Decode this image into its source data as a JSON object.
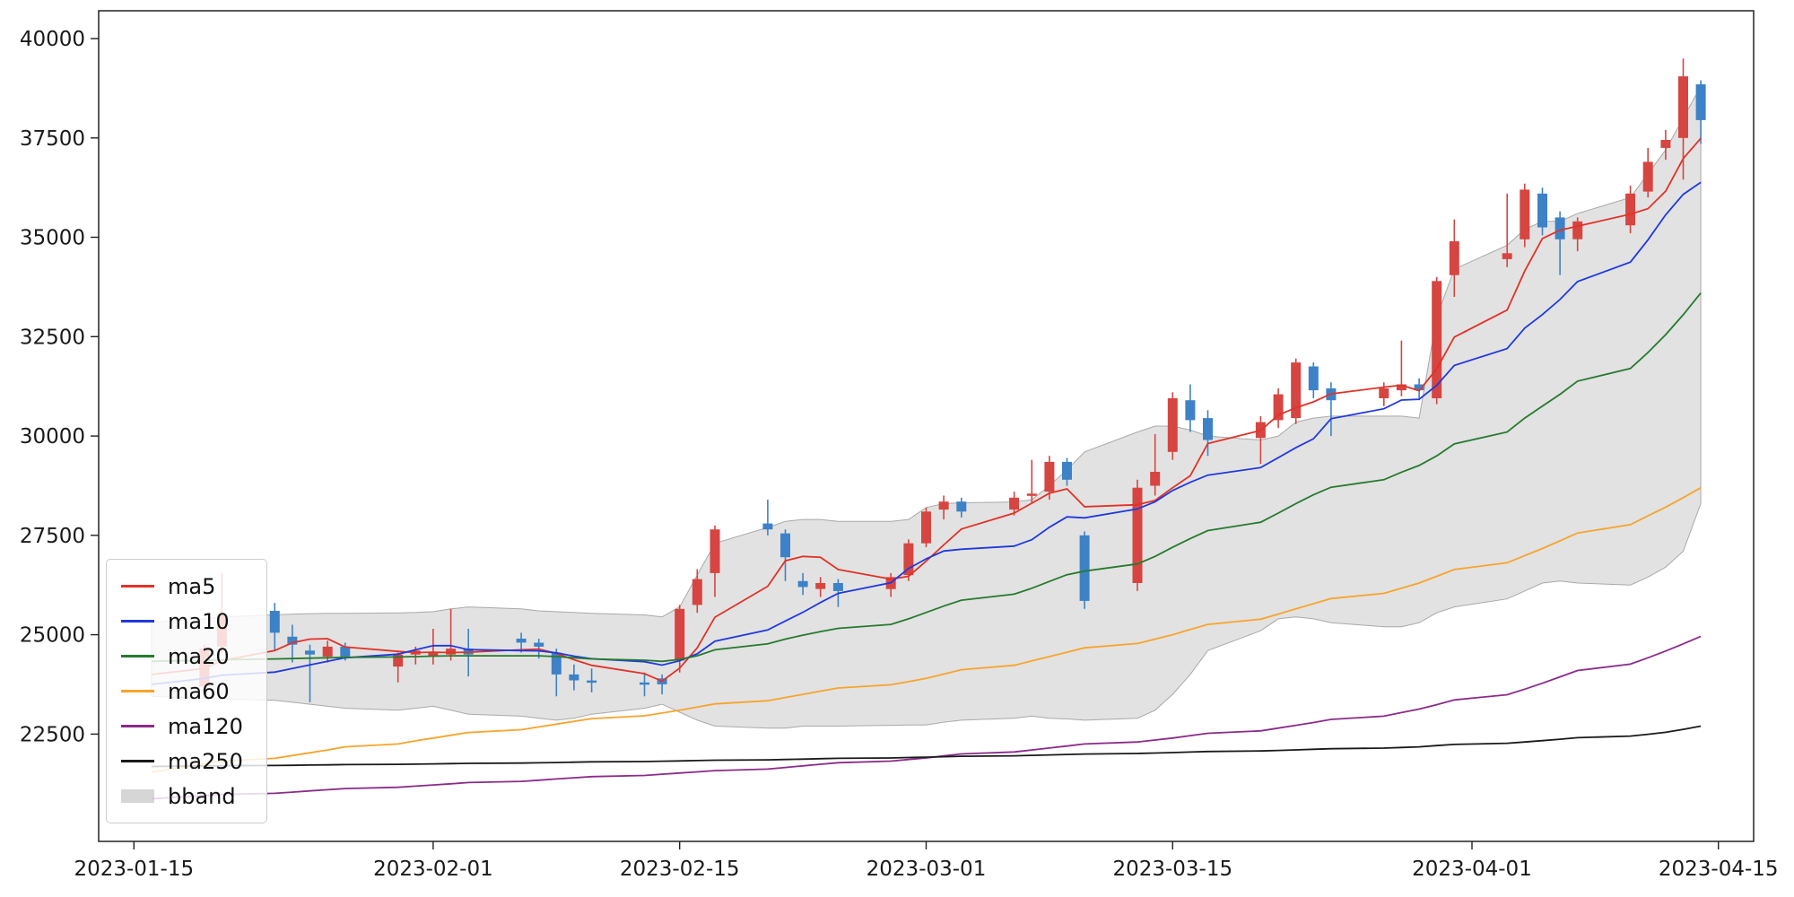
{
  "chart_data": {
    "type": "candlestick",
    "x_axis": {
      "range": [
        "2023-01-13",
        "2023-04-17"
      ],
      "ticks": [
        "2023-01-15",
        "2023-02-01",
        "2023-02-15",
        "2023-03-01",
        "2023-03-15",
        "2023-04-01",
        "2023-04-15"
      ]
    },
    "y_axis": {
      "range": [
        19800,
        40700
      ],
      "ticks": [
        22500,
        25000,
        27500,
        30000,
        32500,
        35000,
        37500,
        40000
      ]
    },
    "grid": false,
    "legend": {
      "position": "lower left",
      "entries": [
        {
          "label": "ma5",
          "color": "#e13228",
          "type": "line"
        },
        {
          "label": "ma10",
          "color": "#2139de",
          "type": "line"
        },
        {
          "label": "ma20",
          "color": "#267a2e",
          "type": "line"
        },
        {
          "label": "ma60",
          "color": "#f7a42b",
          "type": "line"
        },
        {
          "label": "ma120",
          "color": "#8a2b8a",
          "type": "line"
        },
        {
          "label": "ma250",
          "color": "#1a1a1a",
          "type": "line"
        },
        {
          "label": "bband",
          "color": "rgba(180,180,180,0.55)",
          "type": "band"
        }
      ]
    },
    "colors": {
      "up": "#d64541",
      "down": "#3d82c6",
      "band_fill": "rgba(190,190,190,0.45)",
      "band_edge": "rgba(140,140,140,0.7)"
    },
    "dates": [
      "2023-01-16",
      "2023-01-17",
      "2023-01-18",
      "2023-01-19",
      "2023-01-20",
      "2023-01-23",
      "2023-01-24",
      "2023-01-25",
      "2023-01-26",
      "2023-01-27",
      "2023-01-30",
      "2023-01-31",
      "2023-02-01",
      "2023-02-02",
      "2023-02-03",
      "2023-02-06",
      "2023-02-07",
      "2023-02-08",
      "2023-02-09",
      "2023-02-10",
      "2023-02-13",
      "2023-02-14",
      "2023-02-15",
      "2023-02-16",
      "2023-02-17",
      "2023-02-20",
      "2023-02-21",
      "2023-02-22",
      "2023-02-23",
      "2023-02-24",
      "2023-02-27",
      "2023-02-28",
      "2023-03-01",
      "2023-03-02",
      "2023-03-03",
      "2023-03-06",
      "2023-03-07",
      "2023-03-08",
      "2023-03-09",
      "2023-03-10",
      "2023-03-13",
      "2023-03-14",
      "2023-03-15",
      "2023-03-16",
      "2023-03-17",
      "2023-03-20",
      "2023-03-21",
      "2023-03-22",
      "2023-03-23",
      "2023-03-24",
      "2023-03-27",
      "2023-03-28",
      "2023-03-29",
      "2023-03-30",
      "2023-03-31",
      "2023-04-03",
      "2023-04-04",
      "2023-04-05",
      "2023-04-06",
      "2023-04-07",
      "2023-04-10",
      "2023-04-11",
      "2023-04-12",
      "2023-04-13",
      "2023-04-14"
    ],
    "candles": {
      "columns": [
        "date",
        "open",
        "high",
        "low",
        "close"
      ],
      "rows": [
        [
          "2023-01-19",
          23700,
          24750,
          23400,
          24650
        ],
        [
          "2023-01-20",
          24700,
          26550,
          24550,
          25500
        ],
        [
          "2023-01-23",
          25600,
          25800,
          24600,
          25050
        ],
        [
          "2023-01-24",
          24950,
          25250,
          24300,
          24750
        ],
        [
          "2023-01-25",
          24600,
          24750,
          23300,
          24500
        ],
        [
          "2023-01-26",
          24450,
          24850,
          24300,
          24700
        ],
        [
          "2023-01-27",
          24700,
          24800,
          24350,
          24450
        ],
        [
          "2023-01-30",
          24200,
          24550,
          23800,
          24500
        ],
        [
          "2023-01-31",
          24500,
          24700,
          24250,
          24600
        ],
        [
          "2023-02-01",
          24450,
          25150,
          24250,
          24550
        ],
        [
          "2023-02-02",
          24500,
          25650,
          24350,
          24650
        ],
        [
          "2023-02-03",
          24650,
          25150,
          23950,
          24500
        ],
        [
          "2023-02-06",
          24900,
          25050,
          24550,
          24800
        ],
        [
          "2023-02-07",
          24800,
          24900,
          24400,
          24700
        ],
        [
          "2023-02-08",
          24550,
          24650,
          23450,
          24000
        ],
        [
          "2023-02-09",
          24000,
          24250,
          23600,
          23850
        ],
        [
          "2023-02-10",
          23850,
          24150,
          23550,
          23800
        ],
        [
          "2023-02-13",
          23800,
          24050,
          23450,
          23750
        ],
        [
          "2023-02-14",
          23900,
          24000,
          23500,
          23750
        ],
        [
          "2023-02-15",
          24350,
          25750,
          24050,
          25650
        ],
        [
          "2023-02-16",
          25750,
          26650,
          25550,
          26400
        ],
        [
          "2023-02-17",
          26550,
          27750,
          25950,
          27650
        ],
        [
          "2023-02-20",
          27800,
          28400,
          27500,
          27650
        ],
        [
          "2023-02-21",
          27550,
          27650,
          26350,
          26950
        ],
        [
          "2023-02-22",
          26350,
          26550,
          26000,
          26200
        ],
        [
          "2023-02-23",
          26150,
          26450,
          25950,
          26300
        ],
        [
          "2023-02-24",
          26300,
          26400,
          25700,
          26100
        ],
        [
          "2023-02-27",
          26150,
          26550,
          25950,
          26450
        ],
        [
          "2023-02-28",
          26500,
          27400,
          26350,
          27300
        ],
        [
          "2023-03-01",
          27300,
          28200,
          27200,
          28100
        ],
        [
          "2023-03-02",
          28150,
          28500,
          27900,
          28350
        ],
        [
          "2023-03-03",
          28350,
          28450,
          27950,
          28100
        ],
        [
          "2023-03-06",
          28150,
          28600,
          28000,
          28450
        ],
        [
          "2023-03-07",
          28500,
          29400,
          28300,
          28550
        ],
        [
          "2023-03-08",
          28600,
          29500,
          28400,
          29350
        ],
        [
          "2023-03-09",
          29350,
          29450,
          28750,
          28900
        ],
        [
          "2023-03-10",
          27500,
          27600,
          25650,
          25850
        ],
        [
          "2023-03-13",
          26300,
          28900,
          26100,
          28700
        ],
        [
          "2023-03-14",
          28750,
          30050,
          28500,
          29100
        ],
        [
          "2023-03-15",
          29600,
          31100,
          29400,
          30950
        ],
        [
          "2023-03-16",
          30900,
          31300,
          30100,
          30400
        ],
        [
          "2023-03-17",
          30450,
          30650,
          29500,
          29900
        ],
        [
          "2023-03-20",
          29950,
          30500,
          29300,
          30350
        ],
        [
          "2023-03-21",
          30400,
          31200,
          30200,
          31050
        ],
        [
          "2023-03-22",
          30450,
          31950,
          30300,
          31850
        ],
        [
          "2023-03-23",
          31750,
          31850,
          30950,
          31150
        ],
        [
          "2023-03-24",
          31200,
          31350,
          30000,
          30900
        ],
        [
          "2023-03-27",
          30950,
          31350,
          30750,
          31200
        ],
        [
          "2023-03-28",
          31150,
          32400,
          31000,
          31300
        ],
        [
          "2023-03-29",
          31300,
          31450,
          30900,
          31150
        ],
        [
          "2023-03-30",
          30950,
          34000,
          30800,
          33900
        ],
        [
          "2023-03-31",
          34050,
          35450,
          33500,
          34900
        ],
        [
          "2023-04-03",
          34450,
          36100,
          34250,
          34600
        ],
        [
          "2023-04-04",
          34950,
          36350,
          34750,
          36200
        ],
        [
          "2023-04-05",
          36100,
          36250,
          35050,
          35250
        ],
        [
          "2023-04-06",
          35500,
          35650,
          34050,
          34950
        ],
        [
          "2023-04-07",
          34950,
          35500,
          34650,
          35400
        ],
        [
          "2023-04-10",
          35300,
          36300,
          35100,
          36100
        ],
        [
          "2023-04-11",
          36150,
          37250,
          36000,
          36900
        ],
        [
          "2023-04-12",
          37250,
          37700,
          36950,
          37450
        ],
        [
          "2023-04-13",
          37500,
          39500,
          36450,
          39050
        ],
        [
          "2023-04-14",
          38850,
          38950,
          37350,
          37950
        ]
      ]
    },
    "overlays": [
      {
        "name": "ma5",
        "color": "#e13228",
        "values": [
          24000,
          24050,
          24100,
          24150,
          24350,
          24600,
          24800,
          24890,
          24900,
          24690,
          24580,
          24550,
          24560,
          24550,
          24560,
          24620,
          24640,
          24530,
          24370,
          24230,
          24020,
          23830,
          24160,
          24670,
          25440,
          26220,
          26860,
          26970,
          26950,
          26640,
          26400,
          26470,
          26850,
          27260,
          27660,
          28060,
          28310,
          28560,
          28670,
          28220,
          28270,
          28380,
          28700,
          29000,
          29810,
          30140,
          30530,
          30710,
          30860,
          31060,
          31230,
          31280,
          31140,
          31690,
          32490,
          33170,
          34150,
          34970,
          35180,
          35280,
          35580,
          35720,
          36160,
          36980,
          37490
        ]
      },
      {
        "name": "ma10",
        "color": "#2139de",
        "values": [
          23750,
          23800,
          23850,
          23900,
          23980,
          24060,
          24150,
          24240,
          24330,
          24420,
          24510,
          24620,
          24725,
          24725,
          24625,
          24600,
          24595,
          24545,
          24460,
          24395,
          24320,
          24235,
          24345,
          24520,
          24835,
          25120,
          25345,
          25565,
          25810,
          26040,
          26310,
          26665,
          26910,
          27105,
          27150,
          27230,
          27390,
          27705,
          27965,
          27940,
          28165,
          28345,
          28630,
          28835,
          29015,
          29205,
          29455,
          29705,
          29930,
          30435,
          30685,
          30905,
          30925,
          31275,
          31775,
          32200,
          32715,
          33055,
          33435,
          33885,
          34375,
          34935,
          35565,
          36080,
          36385
        ]
      },
      {
        "name": "ma20",
        "color": "#267a2e",
        "values": [
          24330,
          24340,
          24345,
          24350,
          24370,
          24390,
          24400,
          24410,
          24420,
          24430,
          24440,
          24450,
          24460,
          24470,
          24470,
          24470,
          24470,
          24450,
          24420,
          24390,
          24360,
          24330,
          24380,
          24470,
          24620,
          24770,
          24890,
          24990,
          25080,
          25160,
          25260,
          25400,
          25560,
          25720,
          25870,
          26020,
          26170,
          26340,
          26510,
          26600,
          26780,
          26970,
          27200,
          27420,
          27620,
          27830,
          28060,
          28300,
          28520,
          28710,
          28900,
          29090,
          29260,
          29500,
          29800,
          30100,
          30450,
          30750,
          31050,
          31380,
          31700,
          32100,
          32550,
          33050,
          33600
        ]
      },
      {
        "name": "ma60",
        "color": "#f7a42b",
        "values": [
          21550,
          21610,
          21680,
          21750,
          21820,
          21890,
          21960,
          22030,
          22100,
          22180,
          22250,
          22330,
          22400,
          22470,
          22540,
          22610,
          22680,
          22750,
          22820,
          22890,
          22960,
          23030,
          23100,
          23180,
          23260,
          23340,
          23420,
          23500,
          23580,
          23660,
          23740,
          23820,
          23900,
          24010,
          24120,
          24230,
          24340,
          24450,
          24560,
          24670,
          24780,
          24890,
          25000,
          25130,
          25260,
          25390,
          25520,
          25650,
          25780,
          25910,
          26040,
          26170,
          26300,
          26470,
          26640,
          26810,
          26990,
          27170,
          27360,
          27560,
          27770,
          27990,
          28210,
          28450,
          28700
        ]
      },
      {
        "name": "ma120",
        "color": "#8a2b8a",
        "values": [
          20870,
          20900,
          20925,
          20950,
          20980,
          21010,
          21040,
          21070,
          21100,
          21130,
          21160,
          21190,
          21220,
          21250,
          21280,
          21310,
          21340,
          21370,
          21400,
          21430,
          21460,
          21490,
          21520,
          21550,
          21580,
          21620,
          21660,
          21700,
          21740,
          21780,
          21820,
          21860,
          21900,
          21950,
          22000,
          22050,
          22100,
          22150,
          22200,
          22250,
          22300,
          22350,
          22400,
          22460,
          22520,
          22580,
          22650,
          22720,
          22790,
          22870,
          22950,
          23040,
          23130,
          23240,
          23360,
          23490,
          23630,
          23780,
          23940,
          24100,
          24260,
          24420,
          24590,
          24770,
          24960
        ]
      },
      {
        "name": "ma250",
        "color": "#1a1a1a",
        "values": [
          21685,
          21690,
          21695,
          21700,
          21705,
          21710,
          21715,
          21720,
          21726,
          21732,
          21738,
          21744,
          21750,
          21757,
          21764,
          21771,
          21778,
          21785,
          21793,
          21801,
          21809,
          21817,
          21825,
          21834,
          21843,
          21852,
          21861,
          21870,
          21880,
          21890,
          21900,
          21910,
          21920,
          21931,
          21942,
          21953,
          21964,
          21975,
          21987,
          21999,
          22011,
          22023,
          22035,
          22048,
          22061,
          22074,
          22088,
          22102,
          22117,
          22132,
          22148,
          22164,
          22180,
          22210,
          22240,
          22270,
          22300,
          22335,
          22370,
          22410,
          22450,
          22495,
          22545,
          22620,
          22700
        ]
      }
    ],
    "bollinger_band": {
      "name": "bband",
      "upper": [
        25300,
        25350,
        25380,
        25400,
        25450,
        25500,
        25520,
        25530,
        25540,
        25540,
        25550,
        25560,
        25580,
        25650,
        25700,
        25650,
        25600,
        25580,
        25560,
        25540,
        25500,
        25450,
        25700,
        26500,
        27300,
        27700,
        27850,
        27900,
        27900,
        27850,
        27850,
        27900,
        28200,
        28300,
        28320,
        28340,
        28400,
        28750,
        29150,
        29600,
        30100,
        30250,
        30250,
        30150,
        30000,
        29900,
        30000,
        30350,
        30450,
        30500,
        30500,
        30500,
        30450,
        33000,
        34200,
        34800,
        35200,
        35400,
        35400,
        35600,
        36000,
        36600,
        37200,
        38000,
        38800
      ],
      "lower": [
        23450,
        23430,
        23420,
        23400,
        23380,
        23350,
        23300,
        23250,
        23200,
        23150,
        23100,
        23150,
        23200,
        23100,
        23000,
        22950,
        22900,
        22850,
        22900,
        23000,
        23150,
        23250,
        23050,
        22850,
        22700,
        22650,
        22650,
        22700,
        22700,
        22700,
        22720,
        22730,
        22730,
        22800,
        22850,
        22900,
        22950,
        22900,
        22880,
        22850,
        22900,
        23100,
        23500,
        24000,
        24600,
        25100,
        25400,
        25450,
        25400,
        25300,
        25200,
        25200,
        25300,
        25550,
        25700,
        25900,
        26100,
        26300,
        26350,
        26300,
        26250,
        26450,
        26700,
        27100,
        28300
      ]
    }
  }
}
